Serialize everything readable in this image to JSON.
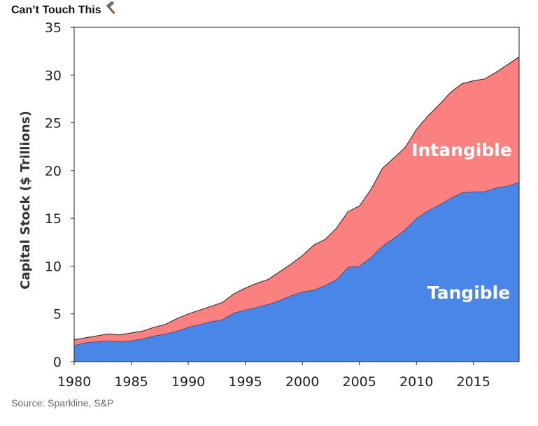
{
  "header": {
    "title": "Can’t Touch This",
    "title_icon": "hammer-icon"
  },
  "footer": {
    "source": "Source: Sparkline, S&P"
  },
  "chart_data": {
    "type": "area",
    "stacked": true,
    "title": "Can’t Touch This",
    "xlabel": "",
    "ylabel": "Capital Stock ($ Trillions)",
    "xlim": [
      1980,
      2019
    ],
    "ylim": [
      0,
      35
    ],
    "x_ticks": [
      "1980",
      "1985",
      "1990",
      "1995",
      "2000",
      "2005",
      "2010",
      "2015"
    ],
    "y_ticks": [
      "0",
      "5",
      "10",
      "15",
      "20",
      "25",
      "30",
      "35"
    ],
    "grid": false,
    "legend": "none (labels inside areas)",
    "x": [
      1980,
      1981,
      1982,
      1983,
      1984,
      1985,
      1986,
      1987,
      1988,
      1989,
      1990,
      1991,
      1992,
      1993,
      1994,
      1995,
      1996,
      1997,
      1998,
      1999,
      2000,
      2001,
      2002,
      2003,
      2004,
      2005,
      2006,
      2007,
      2008,
      2009,
      2010,
      2011,
      2012,
      2013,
      2014,
      2015,
      2016,
      2017,
      2018,
      2019
    ],
    "series": [
      {
        "name": "Tangible",
        "color": "#4a86e8",
        "values": [
          1.7,
          2.0,
          2.1,
          2.2,
          2.1,
          2.2,
          2.4,
          2.7,
          2.9,
          3.2,
          3.6,
          3.9,
          4.2,
          4.4,
          5.1,
          5.4,
          5.7,
          6.0,
          6.4,
          6.9,
          7.3,
          7.5,
          8.0,
          8.6,
          9.9,
          10.0,
          10.9,
          12.1,
          12.9,
          13.8,
          15.0,
          15.8,
          16.4,
          17.1,
          17.7,
          17.8,
          17.8,
          18.2,
          18.4,
          18.8
        ]
      },
      {
        "name": "Intangible",
        "color": "#fb8080",
        "values": [
          0.6,
          0.5,
          0.6,
          0.7,
          0.7,
          0.8,
          0.8,
          0.9,
          1.0,
          1.3,
          1.4,
          1.5,
          1.6,
          1.8,
          2.0,
          2.3,
          2.5,
          2.6,
          3.0,
          3.3,
          3.8,
          4.7,
          4.8,
          5.4,
          5.8,
          6.3,
          7.1,
          8.1,
          8.4,
          8.6,
          9.3,
          9.9,
          10.5,
          11.1,
          11.4,
          11.6,
          11.8,
          12.1,
          12.7,
          13.1
        ]
      }
    ],
    "area_labels": [
      "Intangible",
      "Tangible"
    ]
  }
}
